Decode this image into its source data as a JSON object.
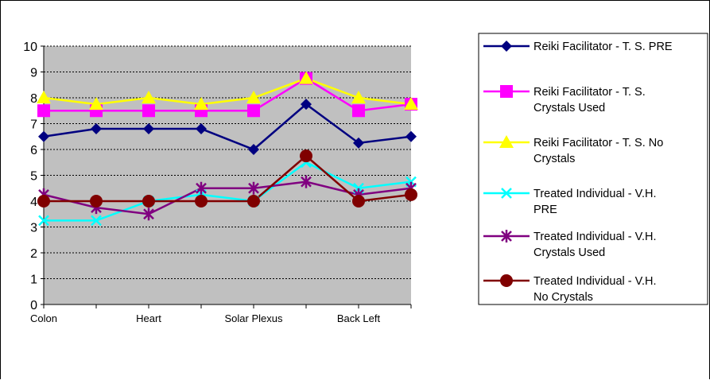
{
  "chart_data": {
    "type": "line",
    "title": "",
    "xlabel": "",
    "ylabel": "",
    "ylim": [
      0,
      10
    ],
    "yticks": [
      0,
      1,
      2,
      3,
      4,
      5,
      6,
      7,
      8,
      9,
      10
    ],
    "categories": [
      "Colon",
      "",
      "Heart",
      "",
      "Solar Plexus",
      "",
      "Back Left",
      ""
    ],
    "grid": true,
    "plot_background": "#c0c0c0",
    "legend_position": "right",
    "series": [
      {
        "name": "Reiki Facilitator - T. S. PRE",
        "legend_lines": [
          "Reiki Facilitator - T. S. PRE"
        ],
        "color": "#000080",
        "marker": "diamond",
        "values": [
          6.5,
          6.8,
          6.8,
          6.8,
          6.0,
          7.75,
          6.25,
          6.5
        ]
      },
      {
        "name": "Reiki Facilitator - T. S. Crystals Used",
        "legend_lines": [
          "Reiki Facilitator - T. S.",
          "Crystals Used"
        ],
        "color": "#ff00ff",
        "marker": "square",
        "values": [
          7.5,
          7.5,
          7.5,
          7.5,
          7.5,
          8.75,
          7.5,
          7.75
        ]
      },
      {
        "name": "Reiki Facilitator - T. S. No Crystals",
        "legend_lines": [
          "Reiki Facilitator - T. S. No",
          "Crystals"
        ],
        "color": "#ffff00",
        "marker": "triangle",
        "values": [
          8.0,
          7.75,
          8.0,
          7.75,
          8.0,
          8.75,
          8.0,
          7.75
        ]
      },
      {
        "name": "Treated Individual - V.H. PRE",
        "legend_lines": [
          "Treated Individual - V.H.",
          "PRE"
        ],
        "color": "#00ffff",
        "marker": "x",
        "values": [
          3.25,
          3.25,
          4.0,
          4.25,
          4.0,
          5.5,
          4.5,
          4.75
        ]
      },
      {
        "name": "Treated Individual - V.H. Crystals Used",
        "legend_lines": [
          "Treated Individual - V.H.",
          "Crystals Used"
        ],
        "color": "#800080",
        "marker": "star",
        "values": [
          4.25,
          3.75,
          3.5,
          4.5,
          4.5,
          4.75,
          4.25,
          4.5
        ]
      },
      {
        "name": "Treated Individual - V.H. No Crystals",
        "legend_lines": [
          "Treated Individual - V.H.",
          "No Crystals"
        ],
        "color": "#800000",
        "marker": "circle",
        "values": [
          4.0,
          4.0,
          4.0,
          4.0,
          4.0,
          5.75,
          4.0,
          4.25
        ]
      }
    ]
  }
}
